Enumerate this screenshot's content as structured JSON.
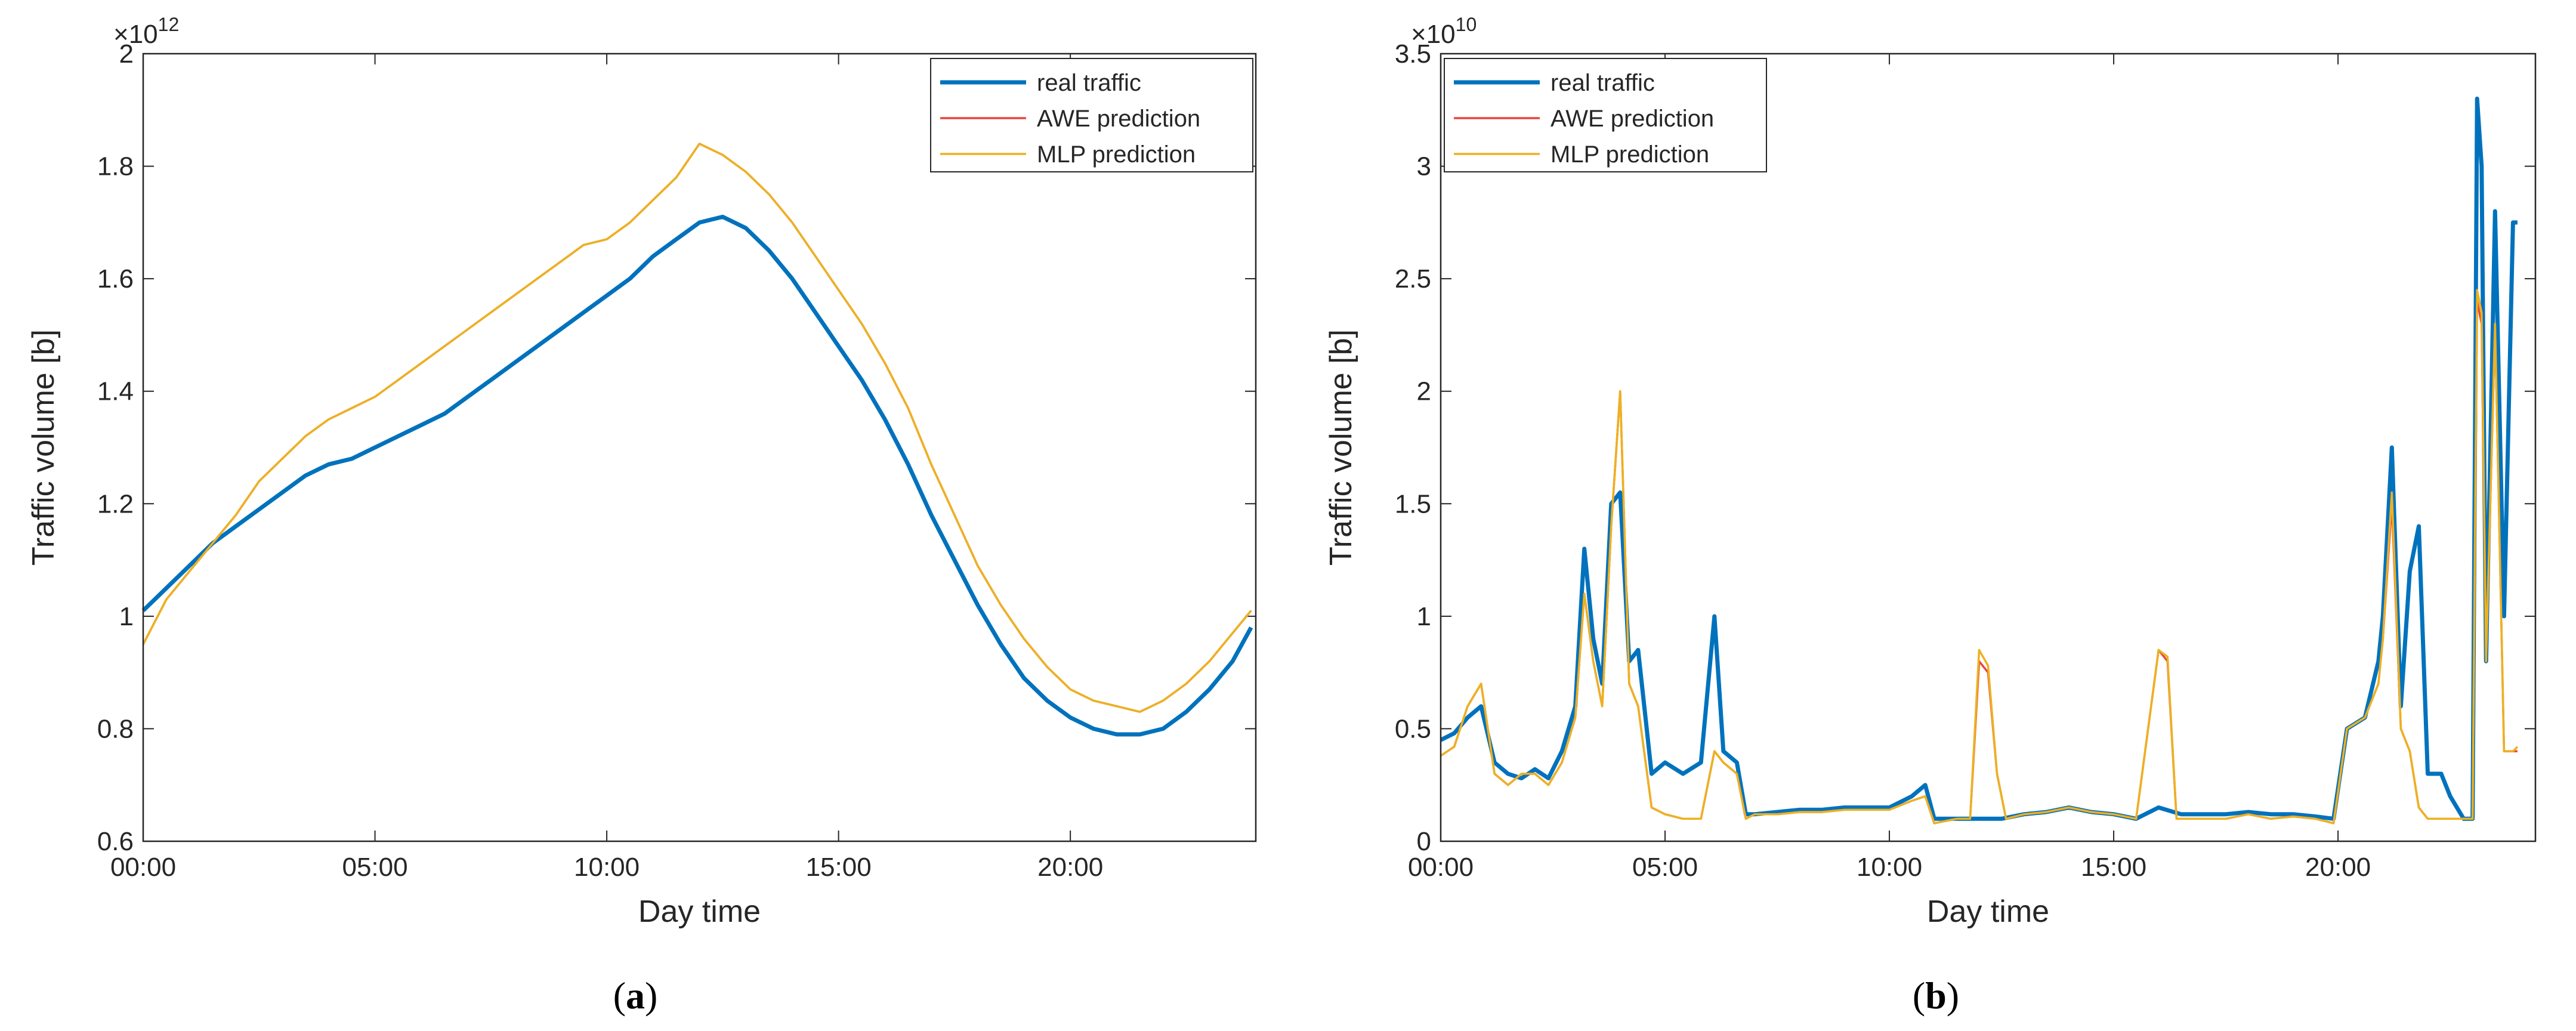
{
  "figure": {
    "panels": [
      {
        "label_open": "(",
        "label": "a",
        "label_close": ")"
      },
      {
        "label_open": "(",
        "label": "b",
        "label_close": ")"
      }
    ]
  },
  "chart_data": [
    {
      "type": "line",
      "panel": "a",
      "xlabel": "Day time",
      "ylabel": "Traffic volume [b]",
      "exponent_base": "×10",
      "exponent": "12",
      "xlim": [
        0,
        24
      ],
      "ylim": [
        0.6,
        2.0
      ],
      "xticks": [
        0,
        5,
        10,
        15,
        20
      ],
      "xtick_labels": [
        "00:00",
        "05:00",
        "10:00",
        "15:00",
        "20:00"
      ],
      "yticks": [
        0.6,
        0.8,
        1.0,
        1.2,
        1.4,
        1.6,
        1.8,
        2.0
      ],
      "ytick_labels": [
        "0.6",
        "0.8",
        "1",
        "1.2",
        "1.4",
        "1.6",
        "1.8",
        "2"
      ],
      "legend_position": "top-right",
      "colors": {
        "real": "#0072BD",
        "awe": "#E8463A",
        "mlp": "#EDB120"
      },
      "series": [
        {
          "name": "real traffic",
          "key": "real",
          "x": [
            0,
            0.5,
            1,
            1.5,
            2,
            2.5,
            3,
            3.5,
            4,
            4.5,
            5,
            5.5,
            6,
            6.5,
            7,
            7.5,
            8,
            8.5,
            9,
            9.5,
            10,
            10.5,
            11,
            11.5,
            12,
            12.5,
            13,
            13.5,
            14,
            14.5,
            15,
            15.5,
            16,
            16.5,
            17,
            17.5,
            18,
            18.5,
            19,
            19.5,
            20,
            20.5,
            21,
            21.5,
            22,
            22.5,
            23,
            23.5,
            23.9
          ],
          "y": [
            1.01,
            1.05,
            1.09,
            1.13,
            1.16,
            1.19,
            1.22,
            1.25,
            1.27,
            1.28,
            1.3,
            1.32,
            1.34,
            1.36,
            1.39,
            1.42,
            1.45,
            1.48,
            1.51,
            1.54,
            1.57,
            1.6,
            1.64,
            1.67,
            1.7,
            1.71,
            1.69,
            1.65,
            1.6,
            1.54,
            1.48,
            1.42,
            1.35,
            1.27,
            1.18,
            1.1,
            1.02,
            0.95,
            0.89,
            0.85,
            0.82,
            0.8,
            0.79,
            0.79,
            0.8,
            0.83,
            0.87,
            0.92,
            0.98
          ]
        },
        {
          "name": "AWE prediction",
          "key": "awe",
          "x": [
            0,
            0.5,
            1,
            1.5,
            2,
            2.5,
            3,
            3.5,
            4,
            4.5,
            5,
            5.5,
            6,
            6.5,
            7,
            7.5,
            8,
            8.5,
            9,
            9.5,
            10,
            10.5,
            11,
            11.5,
            12,
            12.5,
            13,
            13.5,
            14,
            14.5,
            15,
            15.5,
            16,
            16.5,
            17,
            17.5,
            18,
            18.5,
            19,
            19.5,
            20,
            20.5,
            21,
            21.5,
            22,
            22.5,
            23,
            23.5,
            23.9
          ],
          "y": [
            0.95,
            1.03,
            1.08,
            1.13,
            1.18,
            1.24,
            1.28,
            1.32,
            1.35,
            1.37,
            1.39,
            1.42,
            1.45,
            1.48,
            1.51,
            1.54,
            1.57,
            1.6,
            1.63,
            1.66,
            1.67,
            1.7,
            1.74,
            1.78,
            1.84,
            1.82,
            1.79,
            1.75,
            1.7,
            1.64,
            1.58,
            1.52,
            1.45,
            1.37,
            1.27,
            1.18,
            1.09,
            1.02,
            0.96,
            0.91,
            0.87,
            0.85,
            0.84,
            0.83,
            0.85,
            0.88,
            0.92,
            0.97,
            1.01
          ]
        },
        {
          "name": "MLP prediction",
          "key": "mlp",
          "x": [
            0,
            0.5,
            1,
            1.5,
            2,
            2.5,
            3,
            3.5,
            4,
            4.5,
            5,
            5.5,
            6,
            6.5,
            7,
            7.5,
            8,
            8.5,
            9,
            9.5,
            10,
            10.5,
            11,
            11.5,
            12,
            12.5,
            13,
            13.5,
            14,
            14.5,
            15,
            15.5,
            16,
            16.5,
            17,
            17.5,
            18,
            18.5,
            19,
            19.5,
            20,
            20.5,
            21,
            21.5,
            22,
            22.5,
            23,
            23.5,
            23.9
          ],
          "y": [
            0.95,
            1.03,
            1.08,
            1.13,
            1.18,
            1.24,
            1.28,
            1.32,
            1.35,
            1.37,
            1.39,
            1.42,
            1.45,
            1.48,
            1.51,
            1.54,
            1.57,
            1.6,
            1.63,
            1.66,
            1.67,
            1.7,
            1.74,
            1.78,
            1.84,
            1.82,
            1.79,
            1.75,
            1.7,
            1.64,
            1.58,
            1.52,
            1.45,
            1.37,
            1.27,
            1.18,
            1.09,
            1.02,
            0.96,
            0.91,
            0.87,
            0.85,
            0.84,
            0.83,
            0.85,
            0.88,
            0.92,
            0.97,
            1.01
          ]
        }
      ]
    },
    {
      "type": "line",
      "panel": "b",
      "xlabel": "Day time",
      "ylabel": "Traffic volume [b]",
      "exponent_base": "×10",
      "exponent": "10",
      "xlim": [
        0,
        24.4
      ],
      "ylim": [
        0,
        3.5
      ],
      "xticks": [
        0,
        5,
        10,
        15,
        20
      ],
      "xtick_labels": [
        "00:00",
        "05:00",
        "10:00",
        "15:00",
        "20:00"
      ],
      "yticks": [
        0,
        0.5,
        1,
        1.5,
        2,
        2.5,
        3,
        3.5
      ],
      "ytick_labels": [
        "0",
        "0.5",
        "1",
        "1.5",
        "2",
        "2.5",
        "3",
        "3.5"
      ],
      "legend_position": "top-left",
      "colors": {
        "real": "#0072BD",
        "awe": "#E8463A",
        "mlp": "#EDB120"
      },
      "series": [
        {
          "name": "real traffic",
          "key": "real",
          "x": [
            0,
            0.3,
            0.6,
            0.9,
            1.2,
            1.5,
            1.8,
            2.1,
            2.4,
            2.7,
            3.0,
            3.2,
            3.4,
            3.6,
            3.8,
            4.0,
            4.2,
            4.4,
            4.7,
            5.0,
            5.4,
            5.8,
            6.1,
            6.3,
            6.6,
            6.8,
            7.0,
            7.5,
            8,
            8.5,
            9,
            9.5,
            10,
            10.5,
            10.8,
            11.0,
            11.5,
            12,
            12.5,
            13,
            13.5,
            14,
            14.5,
            15,
            15.5,
            16,
            16.5,
            17,
            17.5,
            18,
            18.5,
            19,
            19.5,
            19.9,
            20.2,
            20.6,
            20.9,
            21.0,
            21.2,
            21.4,
            21.6,
            21.8,
            22.0,
            22.3,
            22.5,
            22.8,
            23.0,
            23.1,
            23.2,
            23.3,
            23.5,
            23.7,
            23.9,
            24.0
          ],
          "y": [
            0.45,
            0.48,
            0.55,
            0.6,
            0.35,
            0.3,
            0.28,
            0.32,
            0.28,
            0.4,
            0.6,
            1.3,
            0.9,
            0.7,
            1.5,
            1.55,
            0.8,
            0.85,
            0.3,
            0.35,
            0.3,
            0.35,
            1.0,
            0.4,
            0.35,
            0.12,
            0.12,
            0.13,
            0.14,
            0.14,
            0.15,
            0.15,
            0.15,
            0.2,
            0.25,
            0.1,
            0.1,
            0.1,
            0.1,
            0.12,
            0.13,
            0.15,
            0.13,
            0.12,
            0.1,
            0.15,
            0.12,
            0.12,
            0.12,
            0.13,
            0.12,
            0.12,
            0.11,
            0.1,
            0.5,
            0.55,
            0.8,
            1.0,
            1.75,
            0.6,
            1.2,
            1.4,
            0.3,
            0.3,
            0.2,
            0.1,
            0.1,
            3.3,
            3.0,
            0.8,
            2.8,
            1.0,
            2.75,
            2.75
          ]
        },
        {
          "name": "AWE prediction",
          "key": "awe",
          "x": [
            0,
            0.3,
            0.6,
            0.9,
            1.2,
            1.5,
            1.8,
            2.1,
            2.4,
            2.7,
            3.0,
            3.2,
            3.4,
            3.6,
            3.8,
            4.0,
            4.2,
            4.4,
            4.7,
            5.0,
            5.4,
            5.8,
            6.1,
            6.3,
            6.6,
            6.8,
            7.0,
            7.5,
            8,
            8.5,
            9,
            9.5,
            10,
            10.5,
            10.8,
            11.0,
            11.5,
            11.8,
            12.0,
            12.2,
            12.4,
            12.6,
            13,
            13.5,
            14,
            14.5,
            15,
            15.5,
            16.0,
            16.2,
            16.4,
            16.6,
            17,
            17.5,
            18,
            18.5,
            19,
            19.5,
            19.9,
            20.2,
            20.6,
            20.9,
            21.0,
            21.2,
            21.4,
            21.6,
            21.8,
            22.0,
            22.3,
            22.5,
            22.8,
            23.0,
            23.1,
            23.2,
            23.3,
            23.5,
            23.7,
            23.9,
            24.0
          ],
          "y": [
            0.38,
            0.42,
            0.6,
            0.7,
            0.3,
            0.25,
            0.3,
            0.3,
            0.25,
            0.35,
            0.55,
            1.1,
            0.8,
            0.6,
            1.4,
            2.0,
            0.7,
            0.6,
            0.15,
            0.12,
            0.1,
            0.1,
            0.4,
            0.35,
            0.3,
            0.1,
            0.12,
            0.12,
            0.13,
            0.13,
            0.14,
            0.14,
            0.14,
            0.18,
            0.2,
            0.08,
            0.1,
            0.1,
            0.8,
            0.75,
            0.3,
            0.1,
            0.12,
            0.13,
            0.15,
            0.13,
            0.12,
            0.1,
            0.85,
            0.8,
            0.1,
            0.1,
            0.1,
            0.1,
            0.12,
            0.1,
            0.11,
            0.1,
            0.08,
            0.5,
            0.55,
            0.7,
            0.9,
            1.5,
            0.5,
            0.4,
            0.15,
            0.1,
            0.1,
            0.1,
            0.1,
            0.1,
            2.4,
            2.3,
            0.8,
            2.3,
            0.4,
            0.4,
            0.4
          ]
        },
        {
          "name": "MLP prediction",
          "key": "mlp",
          "x": [
            0,
            0.3,
            0.6,
            0.9,
            1.2,
            1.5,
            1.8,
            2.1,
            2.4,
            2.7,
            3.0,
            3.2,
            3.4,
            3.6,
            3.8,
            4.0,
            4.2,
            4.4,
            4.7,
            5.0,
            5.4,
            5.8,
            6.1,
            6.3,
            6.6,
            6.8,
            7.0,
            7.5,
            8,
            8.5,
            9,
            9.5,
            10,
            10.5,
            10.8,
            11.0,
            11.5,
            11.8,
            12.0,
            12.2,
            12.4,
            12.6,
            13,
            13.5,
            14,
            14.5,
            15,
            15.5,
            16.0,
            16.2,
            16.4,
            16.6,
            17,
            17.5,
            18,
            18.5,
            19,
            19.5,
            19.9,
            20.2,
            20.6,
            20.9,
            21.0,
            21.2,
            21.4,
            21.6,
            21.8,
            22.0,
            22.3,
            22.5,
            22.8,
            23.0,
            23.1,
            23.2,
            23.3,
            23.5,
            23.7,
            23.9,
            24.0
          ],
          "y": [
            0.38,
            0.42,
            0.6,
            0.7,
            0.3,
            0.25,
            0.3,
            0.3,
            0.25,
            0.35,
            0.55,
            1.1,
            0.8,
            0.6,
            1.4,
            2.0,
            0.7,
            0.6,
            0.15,
            0.12,
            0.1,
            0.1,
            0.4,
            0.35,
            0.3,
            0.1,
            0.12,
            0.12,
            0.13,
            0.13,
            0.14,
            0.14,
            0.14,
            0.18,
            0.2,
            0.08,
            0.1,
            0.1,
            0.85,
            0.78,
            0.3,
            0.1,
            0.12,
            0.13,
            0.15,
            0.13,
            0.12,
            0.1,
            0.85,
            0.82,
            0.1,
            0.1,
            0.1,
            0.1,
            0.12,
            0.1,
            0.11,
            0.1,
            0.08,
            0.5,
            0.55,
            0.7,
            0.9,
            1.55,
            0.5,
            0.4,
            0.15,
            0.1,
            0.1,
            0.1,
            0.1,
            0.1,
            2.45,
            2.35,
            0.8,
            2.3,
            0.4,
            0.4,
            0.42
          ]
        }
      ]
    }
  ]
}
